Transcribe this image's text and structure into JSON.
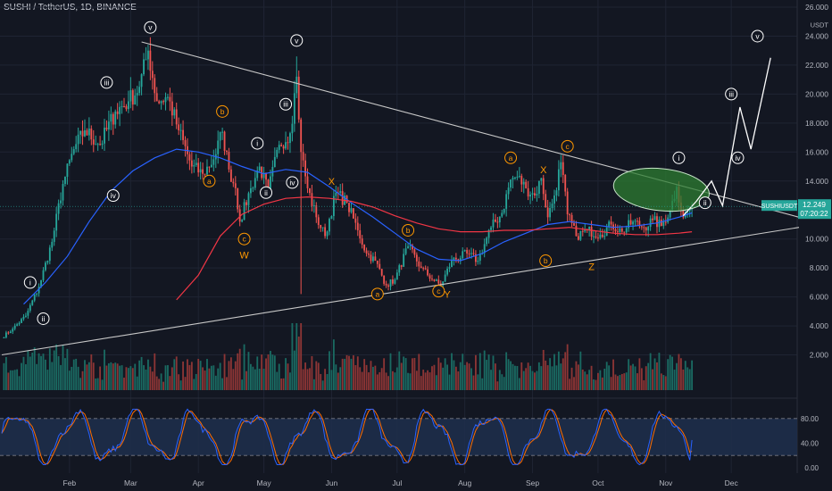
{
  "header": {
    "title": "SUSHI / TetherUS, 1D, BINANCE"
  },
  "colors": {
    "background": "#131722",
    "grid": "#1f2433",
    "axis_text": "#b2b5be",
    "candle_up": "#26a69a",
    "candle_down": "#ef5350",
    "vol_up": "#1a6a62",
    "vol_down": "#8c3535",
    "ma_blue": "#2962ff",
    "ma_red": "#f23645",
    "trendline": "#c8c8c8",
    "projection": "#ffffff",
    "wave_label": "#ffffff",
    "wave_label_orange": "#ff9800",
    "ellipse_fill": "#2e7d32",
    "price_tag": "#26a69a",
    "stoch_k": "#2962ff",
    "stoch_d": "#ff6d00",
    "stoch_band": "#1e2e4a"
  },
  "price_tag": {
    "symbol": "SUSHIUSDT",
    "price": "12.249",
    "countdown": "07:20:22"
  },
  "chart_data": {
    "type": "candlestick",
    "title": "SUSHI / TetherUS, 1D, BINANCE",
    "y_unit": "USDT",
    "ylim": [
      0,
      26
    ],
    "y_ticks": [
      "26.000",
      "24.000",
      "22.000",
      "20.000",
      "18.000",
      "16.000",
      "14.000",
      "12.000",
      "10.000",
      "8.000",
      "6.000",
      "4.000",
      "2.000"
    ],
    "y_tick_values": [
      26,
      24,
      22,
      20,
      18,
      16,
      14,
      12,
      10,
      8,
      6,
      4,
      2
    ],
    "x_ticks": [
      "Feb",
      "Mar",
      "Apr",
      "May",
      "Jun",
      "Jul",
      "Aug",
      "Sep",
      "Oct",
      "Nov",
      "Dec"
    ],
    "x_tick_days": [
      31,
      59,
      90,
      120,
      151,
      181,
      212,
      243,
      273,
      304,
      334
    ],
    "x_range_days": [
      0,
      365
    ],
    "anchors": [
      [
        0,
        3.2
      ],
      [
        5,
        3.8
      ],
      [
        11,
        4.7
      ],
      [
        17,
        6.7
      ],
      [
        23,
        9.8
      ],
      [
        28,
        13.8
      ],
      [
        33,
        16.2
      ],
      [
        38,
        17.5
      ],
      [
        45,
        16.5
      ],
      [
        52,
        18.8
      ],
      [
        58,
        19.5
      ],
      [
        63,
        20.5
      ],
      [
        67,
        23
      ],
      [
        71,
        19.5
      ],
      [
        76,
        19.8
      ],
      [
        81,
        17.5
      ],
      [
        87,
        15.0
      ],
      [
        92,
        14.5
      ],
      [
        97,
        15.5
      ],
      [
        101,
        17.4
      ],
      [
        104,
        14.8
      ],
      [
        107,
        13.5
      ],
      [
        109,
        11.2
      ],
      [
        114,
        13.5
      ],
      [
        118,
        15.0
      ],
      [
        122,
        13.3
      ],
      [
        127,
        16.5
      ],
      [
        132,
        17.3
      ],
      [
        135,
        21.2
      ],
      [
        137,
        16.0
      ],
      [
        140,
        13.5
      ],
      [
        144,
        11.5
      ],
      [
        148,
        10.2
      ],
      [
        153,
        13.2
      ],
      [
        158,
        12.5
      ],
      [
        163,
        10.6
      ],
      [
        167,
        9.0
      ],
      [
        171,
        8.5
      ],
      [
        176,
        6.8
      ],
      [
        180,
        7.2
      ],
      [
        186,
        9.5
      ],
      [
        192,
        8.0
      ],
      [
        198,
        7.1
      ],
      [
        201,
        6.8
      ],
      [
        206,
        8.5
      ],
      [
        213,
        9.0
      ],
      [
        218,
        8.5
      ],
      [
        224,
        10.8
      ],
      [
        229,
        11.8
      ],
      [
        233,
        14.1
      ],
      [
        236,
        14.3
      ],
      [
        240,
        13.5
      ],
      [
        244,
        13.0
      ],
      [
        247,
        14.2
      ],
      [
        250,
        11.5
      ],
      [
        253,
        13.0
      ],
      [
        256,
        15.3
      ],
      [
        259,
        11.7
      ],
      [
        263,
        10.2
      ],
      [
        268,
        10.6
      ],
      [
        274,
        10.3
      ],
      [
        279,
        11.0
      ],
      [
        284,
        10.5
      ],
      [
        289,
        11.2
      ],
      [
        294,
        10.8
      ],
      [
        298,
        11.3
      ],
      [
        302,
        10.9
      ],
      [
        306,
        12.0
      ],
      [
        309,
        13.6
      ],
      [
        312,
        11.5
      ],
      [
        316,
        12.25
      ]
    ],
    "ma_blue": [
      [
        10,
        5.5
      ],
      [
        20,
        7.0
      ],
      [
        30,
        8.8
      ],
      [
        40,
        11.2
      ],
      [
        50,
        13.3
      ],
      [
        60,
        14.7
      ],
      [
        70,
        15.6
      ],
      [
        80,
        16.2
      ],
      [
        90,
        16.0
      ],
      [
        100,
        15.6
      ],
      [
        110,
        15.0
      ],
      [
        120,
        14.5
      ],
      [
        130,
        14.8
      ],
      [
        140,
        14.6
      ],
      [
        150,
        13.6
      ],
      [
        160,
        12.5
      ],
      [
        170,
        11.5
      ],
      [
        180,
        10.4
      ],
      [
        190,
        9.3
      ],
      [
        200,
        8.6
      ],
      [
        210,
        8.5
      ],
      [
        220,
        9.0
      ],
      [
        230,
        9.8
      ],
      [
        240,
        10.4
      ],
      [
        250,
        11.0
      ],
      [
        260,
        11.2
      ],
      [
        270,
        11.0
      ],
      [
        280,
        10.8
      ],
      [
        290,
        10.9
      ],
      [
        300,
        11.1
      ],
      [
        310,
        11.5
      ],
      [
        316,
        11.8
      ]
    ],
    "ma_red": [
      [
        80,
        5.8
      ],
      [
        90,
        7.5
      ],
      [
        100,
        10.2
      ],
      [
        110,
        11.7
      ],
      [
        120,
        12.4
      ],
      [
        130,
        12.8
      ],
      [
        140,
        12.9
      ],
      [
        150,
        12.8
      ],
      [
        160,
        12.6
      ],
      [
        170,
        12.2
      ],
      [
        180,
        11.6
      ],
      [
        190,
        11.1
      ],
      [
        200,
        10.7
      ],
      [
        210,
        10.5
      ],
      [
        220,
        10.5
      ],
      [
        230,
        10.6
      ],
      [
        240,
        10.6
      ],
      [
        250,
        10.7
      ],
      [
        260,
        10.8
      ],
      [
        270,
        10.6
      ],
      [
        280,
        10.4
      ],
      [
        290,
        10.3
      ],
      [
        300,
        10.3
      ],
      [
        310,
        10.4
      ],
      [
        316,
        10.5
      ]
    ],
    "trendline_upper": [
      [
        64,
        23.6
      ],
      [
        365,
        11.5
      ]
    ],
    "trendline_lower": [
      [
        0,
        2.0
      ],
      [
        365,
        10.8
      ]
    ],
    "projection_path": [
      [
        312,
        11.6
      ],
      [
        318,
        12.6
      ],
      [
        325,
        14.0
      ],
      [
        330,
        12.3
      ],
      [
        338,
        19.1
      ],
      [
        343,
        16.2
      ],
      [
        352,
        22.5
      ]
    ],
    "target_zone": {
      "center": [
        302,
        13.4
      ],
      "rx_days": 22,
      "ry_price": 1.45
    },
    "wave_labels": [
      {
        "text": "i",
        "x": 13,
        "y": 7.0,
        "style": "circle-white"
      },
      {
        "text": "ii",
        "x": 19,
        "y": 4.5,
        "style": "circle-white"
      },
      {
        "text": "iii",
        "x": 48,
        "y": 20.8,
        "style": "circle-white"
      },
      {
        "text": "iv",
        "x": 51,
        "y": 13.0,
        "style": "circle-white"
      },
      {
        "text": "v",
        "x": 68,
        "y": 24.6,
        "style": "circle-white"
      },
      {
        "text": "b",
        "x": 101,
        "y": 18.8,
        "style": "circle-orange"
      },
      {
        "text": "a",
        "x": 95,
        "y": 14.0,
        "style": "circle-orange"
      },
      {
        "text": "c",
        "x": 111,
        "y": 10.0,
        "style": "circle-orange"
      },
      {
        "text": "W",
        "x": 111,
        "y": 8.9,
        "style": "text-orange"
      },
      {
        "text": "i",
        "x": 117,
        "y": 16.6,
        "style": "circle-white"
      },
      {
        "text": "ii",
        "x": 121,
        "y": 13.2,
        "style": "circle-white"
      },
      {
        "text": "iii",
        "x": 130,
        "y": 19.3,
        "style": "circle-white"
      },
      {
        "text": "iv",
        "x": 133,
        "y": 13.9,
        "style": "circle-white"
      },
      {
        "text": "v",
        "x": 135,
        "y": 23.7,
        "style": "circle-white"
      },
      {
        "text": "X",
        "x": 151,
        "y": 14.0,
        "style": "text-orange"
      },
      {
        "text": "b",
        "x": 186,
        "y": 10.6,
        "style": "circle-orange"
      },
      {
        "text": "a",
        "x": 172,
        "y": 6.2,
        "style": "circle-orange"
      },
      {
        "text": "c",
        "x": 200,
        "y": 6.4,
        "style": "circle-orange"
      },
      {
        "text": "Y",
        "x": 204,
        "y": 6.2,
        "style": "text-orange"
      },
      {
        "text": "a",
        "x": 233,
        "y": 15.6,
        "style": "circle-orange"
      },
      {
        "text": "X",
        "x": 248,
        "y": 14.8,
        "style": "text-orange"
      },
      {
        "text": "c",
        "x": 259,
        "y": 16.4,
        "style": "circle-orange"
      },
      {
        "text": "b",
        "x": 249,
        "y": 8.5,
        "style": "circle-orange"
      },
      {
        "text": "Z",
        "x": 270,
        "y": 8.1,
        "style": "text-orange"
      },
      {
        "text": "i",
        "x": 310,
        "y": 15.6,
        "style": "circle-white"
      },
      {
        "text": "ii",
        "x": 322,
        "y": 12.5,
        "style": "circle-white"
      },
      {
        "text": "iii",
        "x": 334,
        "y": 20.0,
        "style": "circle-white"
      },
      {
        "text": "iv",
        "x": 337,
        "y": 15.6,
        "style": "circle-white"
      },
      {
        "text": "v",
        "x": 346,
        "y": 24.0,
        "style": "circle-white"
      }
    ],
    "stoch": {
      "ylim": [
        0,
        100
      ],
      "y_ticks": [
        "80.00",
        "40.00",
        "0.00"
      ],
      "y_tick_values": [
        80,
        40,
        0
      ],
      "bands": [
        20,
        80
      ],
      "k_last": 45
    }
  }
}
